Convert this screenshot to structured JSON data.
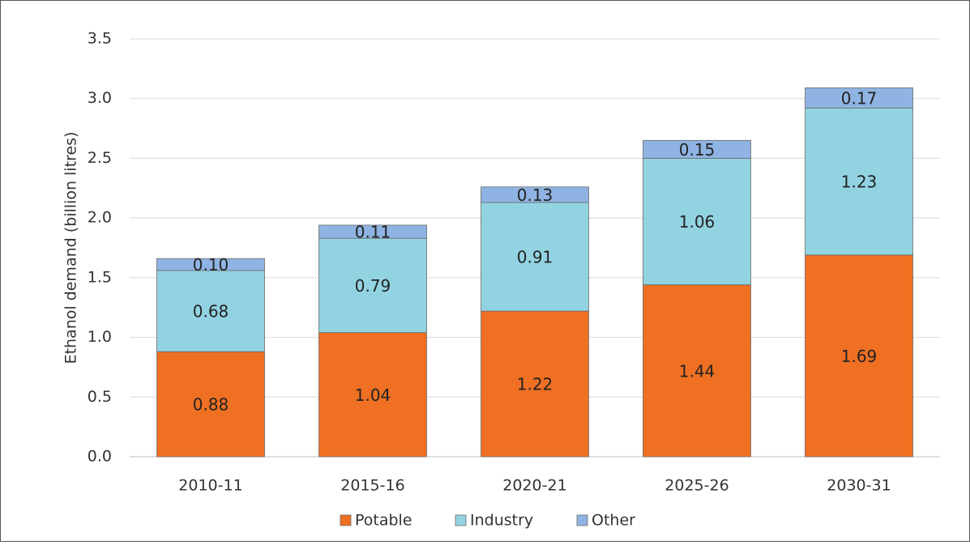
{
  "chart_data": {
    "type": "stacked_bar",
    "y_label": "Ethanol demand (billion litres)",
    "categories": [
      "2010-11",
      "2015-16",
      "2020-21",
      "2025-26",
      "2030-31"
    ],
    "series": [
      {
        "name": "Potable",
        "color": "#ef7022",
        "values": [
          0.88,
          1.04,
          1.22,
          1.44,
          1.69
        ],
        "value_labels": [
          "0.88",
          "1.04",
          "1.22",
          "1.44",
          "1.69"
        ]
      },
      {
        "name": "Industry",
        "color": "#92d3e2",
        "values": [
          0.68,
          0.79,
          0.91,
          1.06,
          1.23
        ],
        "value_labels": [
          "0.68",
          "0.79",
          "0.91",
          "1.06",
          "1.23"
        ]
      },
      {
        "name": "Other",
        "color": "#8fb4e3",
        "values": [
          0.1,
          0.11,
          0.13,
          0.15,
          0.17
        ],
        "value_labels": [
          "0.10",
          "0.11",
          "0.13",
          "0.15",
          "0.17"
        ]
      }
    ],
    "ylim": [
      0,
      3.5
    ],
    "yticks": [
      {
        "value": 0,
        "label": "0.0"
      },
      0.5,
      {
        "value": 1,
        "label": "1.0"
      },
      1.5,
      {
        "value": 2,
        "label": "2.0"
      },
      2.5,
      {
        "value": 3,
        "label": "3.0"
      },
      3.5
    ],
    "grid": true,
    "legend": "bottom"
  }
}
